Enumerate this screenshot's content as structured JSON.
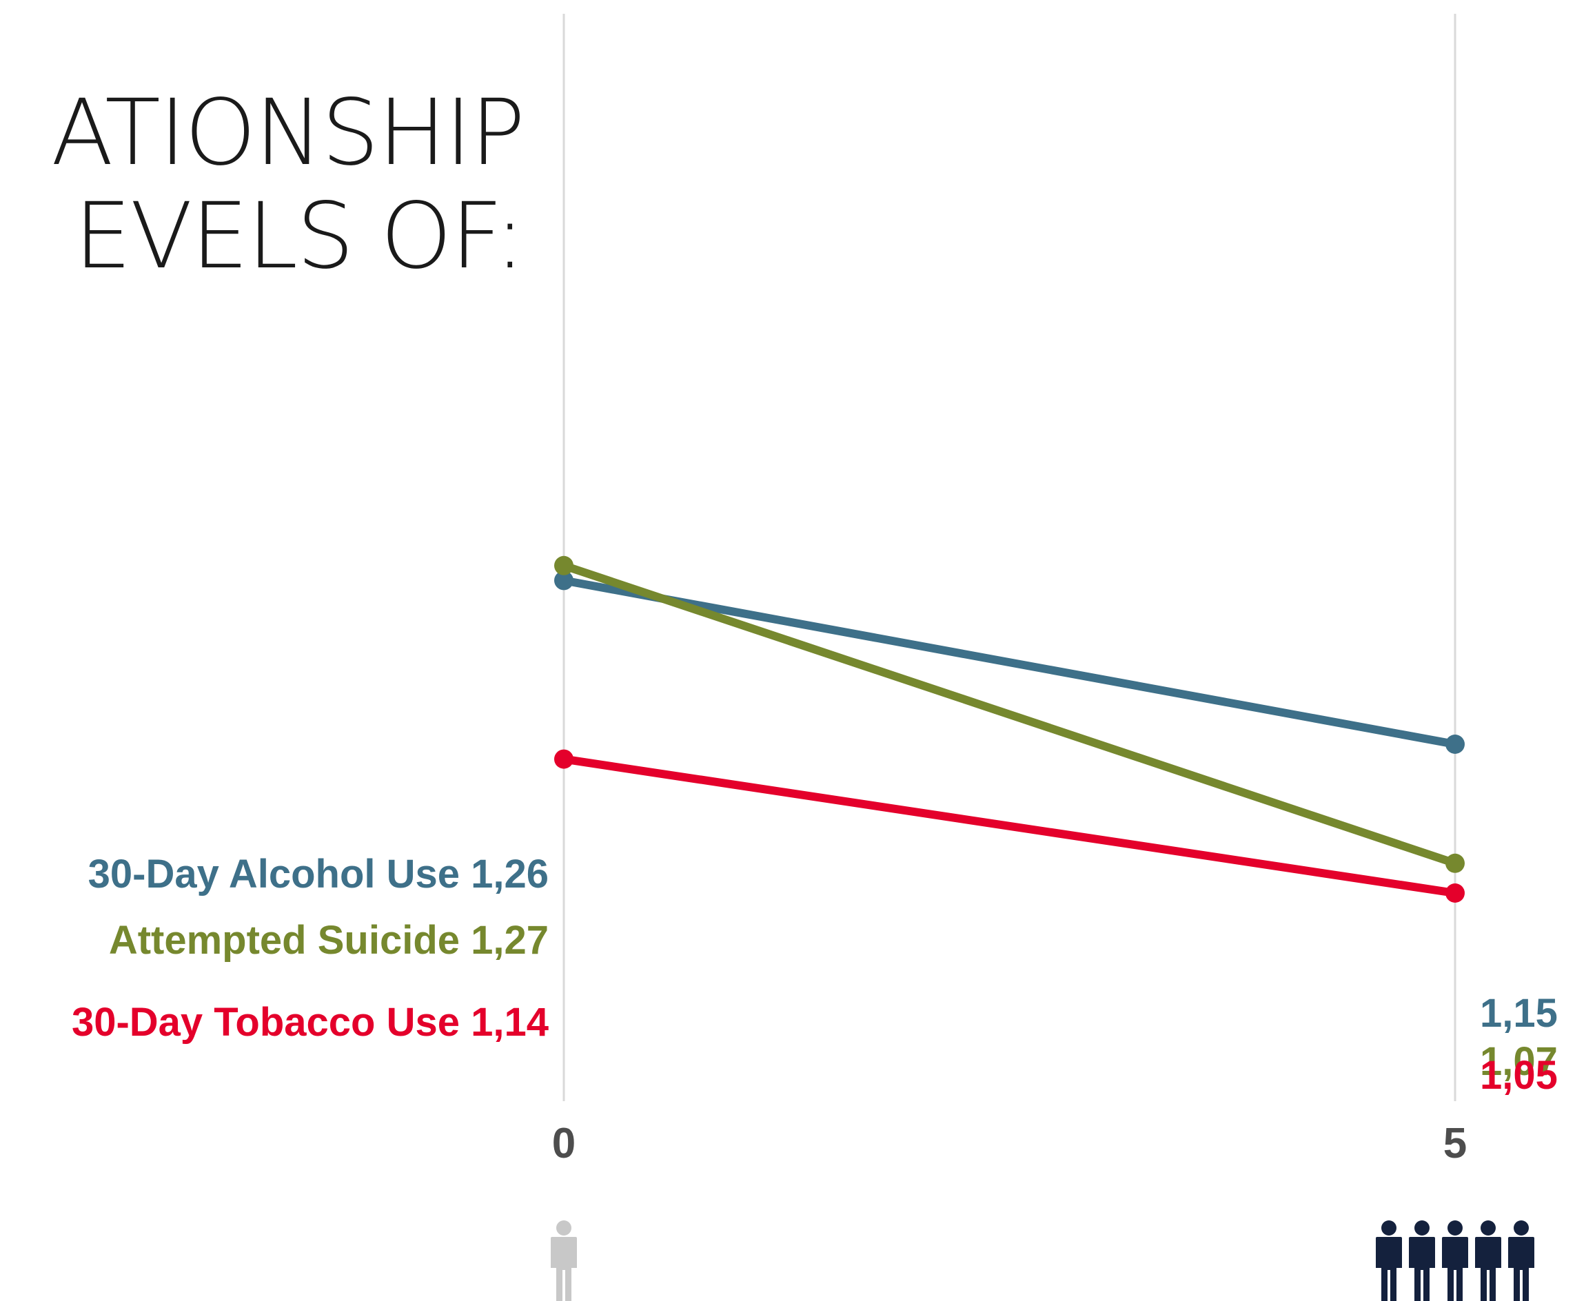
{
  "header": {
    "title_lines": [
      "ATIONSHIP",
      "EVELS OF:"
    ]
  },
  "colors": {
    "gridline": "#d9d9d9",
    "tick_text": "#4d4d4d",
    "icon_light": "#c8c8c8",
    "icon_dark": "#14213d"
  },
  "chart_data": {
    "type": "line",
    "x": [
      0,
      5
    ],
    "x_tick_labels": [
      "0",
      "5"
    ],
    "ylim": [
      0.9,
      1.65
    ],
    "grid": "vertical lines at x ticks",
    "series": [
      {
        "name": "30-Day Alcohol Use",
        "values": [
          1.26,
          1.15
        ],
        "labels": [
          "30-Day Alcohol Use 1,26",
          "1,15"
        ],
        "color": "#3e7089"
      },
      {
        "name": "Attempted Suicide",
        "values": [
          1.27,
          1.07
        ],
        "labels": [
          "Attempted Suicide 1,27",
          "1,07"
        ],
        "color": "#76882e"
      },
      {
        "name": "30-Day Tobacco Use",
        "values": [
          1.14,
          1.05
        ],
        "labels": [
          "30-Day Tobacco Use 1,14",
          "1,05"
        ],
        "color": "#e4002b"
      }
    ],
    "x_icons": [
      {
        "x": 0,
        "icon": "person-icon",
        "count": 1,
        "color": "#c8c8c8"
      },
      {
        "x": 5,
        "icon": "person-icon",
        "count": 5,
        "color": "#14213d"
      }
    ]
  }
}
